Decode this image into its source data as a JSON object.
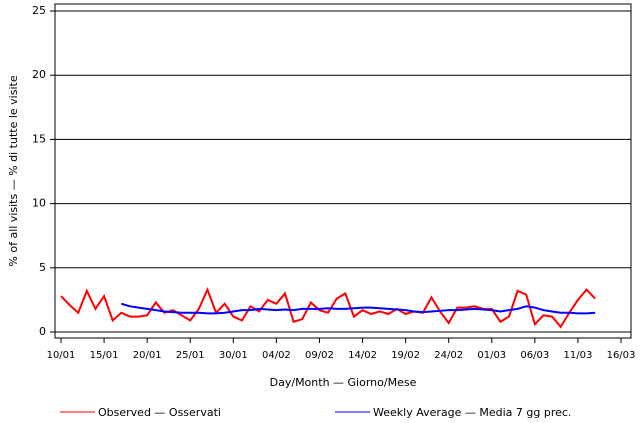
{
  "chart_data": {
    "type": "line",
    "x_label": "Day/Month — Giorno/Mese",
    "y_label": "% of all visits — % di tutte le visite",
    "categories": [
      "10/01",
      null,
      null,
      null,
      null,
      "15/01",
      null,
      null,
      null,
      null,
      "20/01",
      null,
      null,
      null,
      null,
      "25/01",
      null,
      null,
      null,
      null,
      "30/01",
      null,
      null,
      null,
      null,
      "04/02",
      null,
      null,
      null,
      null,
      "09/02",
      null,
      null,
      null,
      null,
      "14/02",
      null,
      null,
      null,
      null,
      "19/02",
      null,
      null,
      null,
      null,
      "24/02",
      null,
      null,
      null,
      null,
      "01/03",
      null,
      null,
      null,
      null,
      "06/03",
      null,
      null,
      null,
      null,
      "11/03",
      null,
      null,
      null,
      null,
      "16/03"
    ],
    "series": [
      {
        "name": "Observed — Osservati",
        "color": "#ff0000",
        "values": [
          2.8,
          2.1,
          1.5,
          3.2,
          1.8,
          2.8,
          0.9,
          1.5,
          1.2,
          1.2,
          1.3,
          2.3,
          1.5,
          1.7,
          1.3,
          0.9,
          1.8,
          3.3,
          1.5,
          2.2,
          1.2,
          0.9,
          2.0,
          1.6,
          2.5,
          2.2,
          3.0,
          0.8,
          1.0,
          2.3,
          1.7,
          1.5,
          2.6,
          3.0,
          1.2,
          1.7,
          1.4,
          1.6,
          1.4,
          1.8,
          1.4,
          1.6,
          1.5,
          2.7,
          1.6,
          0.7,
          1.9,
          1.9,
          2.0,
          1.8,
          1.8,
          0.8,
          1.2,
          3.2,
          2.9,
          0.6,
          1.3,
          1.2,
          0.4,
          1.5,
          2.5,
          3.3,
          2.6,
          null,
          null,
          null
        ]
      },
      {
        "name": "Weekly Average — Media 7 gg prec.",
        "color": "#0000ff",
        "values": [
          null,
          null,
          null,
          null,
          null,
          null,
          null,
          2.2,
          2.0,
          1.9,
          1.8,
          1.7,
          1.6,
          1.55,
          1.5,
          1.5,
          1.5,
          1.45,
          1.45,
          1.5,
          1.6,
          1.7,
          1.7,
          1.8,
          1.75,
          1.7,
          1.75,
          1.7,
          1.8,
          1.8,
          1.8,
          1.85,
          1.8,
          1.8,
          1.85,
          1.9,
          1.9,
          1.85,
          1.8,
          1.75,
          1.7,
          1.6,
          1.55,
          1.6,
          1.65,
          1.7,
          1.7,
          1.75,
          1.8,
          1.75,
          1.7,
          1.6,
          1.7,
          1.8,
          2.0,
          1.9,
          1.7,
          1.6,
          1.5,
          1.5,
          1.45,
          1.45,
          1.5,
          null,
          null,
          null
        ]
      }
    ],
    "ylim": [
      0,
      25
    ],
    "yticks": [
      0,
      5,
      10,
      15,
      20,
      25
    ],
    "grid": true
  }
}
